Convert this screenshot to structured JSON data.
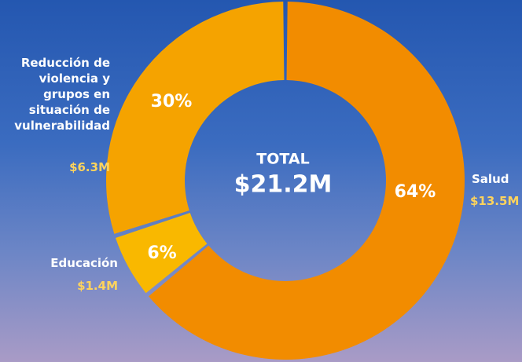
{
  "chart_data": {
    "type": "donut",
    "categories": [
      "Salud",
      "Educación",
      "Reducción de violencia y grupos en situación de vulnerabilidad"
    ],
    "values": [
      64,
      6,
      30
    ],
    "value_labels": [
      "64%",
      "6%",
      "30%"
    ],
    "amount_labels": [
      "$13.5M",
      "$1.4M",
      "$6.3M"
    ],
    "colors": [
      "#f28c00",
      "#f9b800",
      "#f5a300"
    ],
    "center_title": "TOTAL",
    "center_total": "$21.2M"
  }
}
